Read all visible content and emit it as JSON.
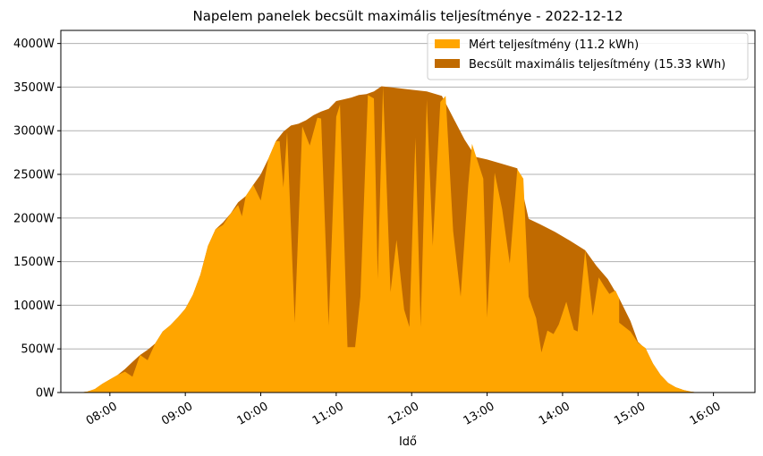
{
  "chart_data": {
    "type": "area",
    "title": "Napelem panelek becsült maximális teljesítménye  -  2022-12-12",
    "xlabel": "Idő",
    "ylabel": "",
    "x_unit": "hours",
    "xlim": [
      7.35,
      16.55
    ],
    "ylim": [
      0,
      4150
    ],
    "y_ticks": [
      0,
      500,
      1000,
      1500,
      2000,
      2500,
      3000,
      3500,
      4000
    ],
    "y_tick_suffix": "W",
    "x_ticks": [
      {
        "value": 8,
        "label": "08:00"
      },
      {
        "value": 9,
        "label": "09:00"
      },
      {
        "value": 10,
        "label": "10:00"
      },
      {
        "value": 11,
        "label": "11:00"
      },
      {
        "value": 12,
        "label": "12:00"
      },
      {
        "value": 13,
        "label": "13:00"
      },
      {
        "value": 14,
        "label": "14:00"
      },
      {
        "value": 15,
        "label": "15:00"
      },
      {
        "value": 16,
        "label": "16:00"
      }
    ],
    "grid": "horizontal",
    "legend_position": "top-right",
    "series": [
      {
        "name": "Becsült maximális teljesítmény (15.33 kWh)",
        "color": "#c06a00",
        "points": [
          [
            7.6,
            0
          ],
          [
            7.7,
            10
          ],
          [
            7.8,
            40
          ],
          [
            7.9,
            100
          ],
          [
            8.0,
            150
          ],
          [
            8.1,
            200
          ],
          [
            8.2,
            270
          ],
          [
            8.3,
            350
          ],
          [
            8.4,
            430
          ],
          [
            8.5,
            490
          ],
          [
            8.6,
            560
          ],
          [
            8.7,
            700
          ],
          [
            8.8,
            770
          ],
          [
            8.9,
            860
          ],
          [
            9.0,
            960
          ],
          [
            9.1,
            1120
          ],
          [
            9.2,
            1350
          ],
          [
            9.3,
            1680
          ],
          [
            9.4,
            1870
          ],
          [
            9.5,
            1950
          ],
          [
            9.6,
            2050
          ],
          [
            9.7,
            2180
          ],
          [
            9.8,
            2250
          ],
          [
            9.9,
            2380
          ],
          [
            10.0,
            2500
          ],
          [
            10.1,
            2680
          ],
          [
            10.2,
            2880
          ],
          [
            10.3,
            2990
          ],
          [
            10.4,
            3060
          ],
          [
            10.5,
            3080
          ],
          [
            10.6,
            3120
          ],
          [
            10.7,
            3180
          ],
          [
            10.8,
            3220
          ],
          [
            10.9,
            3250
          ],
          [
            11.0,
            3340
          ],
          [
            11.1,
            3360
          ],
          [
            11.2,
            3380
          ],
          [
            11.3,
            3410
          ],
          [
            11.4,
            3420
          ],
          [
            11.5,
            3450
          ],
          [
            11.6,
            3510
          ],
          [
            11.8,
            3490
          ],
          [
            12.0,
            3470
          ],
          [
            12.2,
            3450
          ],
          [
            12.4,
            3400
          ],
          [
            12.55,
            3150
          ],
          [
            12.7,
            2900
          ],
          [
            12.85,
            2700
          ],
          [
            13.0,
            2670
          ],
          [
            13.2,
            2620
          ],
          [
            13.4,
            2570
          ],
          [
            13.55,
            1990
          ],
          [
            13.7,
            1930
          ],
          [
            13.9,
            1840
          ],
          [
            14.1,
            1740
          ],
          [
            14.3,
            1630
          ],
          [
            14.45,
            1450
          ],
          [
            14.6,
            1300
          ],
          [
            14.75,
            1080
          ],
          [
            14.9,
            820
          ],
          [
            15.0,
            580
          ],
          [
            15.1,
            500
          ],
          [
            15.2,
            330
          ],
          [
            15.3,
            200
          ],
          [
            15.4,
            110
          ],
          [
            15.5,
            60
          ],
          [
            15.6,
            30
          ],
          [
            15.7,
            10
          ],
          [
            15.8,
            0
          ]
        ]
      },
      {
        "name": "Mért teljesítmény (11.2 kWh)",
        "color": "#ffa500",
        "points": [
          [
            7.6,
            0
          ],
          [
            7.7,
            10
          ],
          [
            7.8,
            40
          ],
          [
            7.9,
            100
          ],
          [
            8.0,
            150
          ],
          [
            8.1,
            200
          ],
          [
            8.2,
            240
          ],
          [
            8.3,
            180
          ],
          [
            8.4,
            430
          ],
          [
            8.5,
            370
          ],
          [
            8.6,
            560
          ],
          [
            8.7,
            700
          ],
          [
            8.8,
            770
          ],
          [
            8.9,
            860
          ],
          [
            9.0,
            960
          ],
          [
            9.1,
            1120
          ],
          [
            9.2,
            1350
          ],
          [
            9.3,
            1680
          ],
          [
            9.4,
            1870
          ],
          [
            9.5,
            1920
          ],
          [
            9.6,
            2050
          ],
          [
            9.7,
            2150
          ],
          [
            9.75,
            2020
          ],
          [
            9.8,
            2250
          ],
          [
            9.9,
            2380
          ],
          [
            10.0,
            2200
          ],
          [
            10.1,
            2680
          ],
          [
            10.2,
            2880
          ],
          [
            10.25,
            2880
          ],
          [
            10.3,
            2350
          ],
          [
            10.35,
            2990
          ],
          [
            10.45,
            800
          ],
          [
            10.55,
            3050
          ],
          [
            10.65,
            2830
          ],
          [
            10.75,
            3150
          ],
          [
            10.8,
            3140
          ],
          [
            10.9,
            770
          ],
          [
            11.0,
            3160
          ],
          [
            11.05,
            3300
          ],
          [
            11.15,
            520
          ],
          [
            11.25,
            520
          ],
          [
            11.32,
            1100
          ],
          [
            11.42,
            3410
          ],
          [
            11.5,
            3370
          ],
          [
            11.55,
            1300
          ],
          [
            11.62,
            3510
          ],
          [
            11.72,
            1150
          ],
          [
            11.8,
            1750
          ],
          [
            11.9,
            950
          ],
          [
            11.97,
            750
          ],
          [
            12.05,
            2920
          ],
          [
            12.12,
            750
          ],
          [
            12.2,
            3360
          ],
          [
            12.28,
            1680
          ],
          [
            12.38,
            3330
          ],
          [
            12.45,
            3400
          ],
          [
            12.55,
            1850
          ],
          [
            12.65,
            1100
          ],
          [
            12.75,
            2380
          ],
          [
            12.8,
            2850
          ],
          [
            12.95,
            2450
          ],
          [
            13.0,
            860
          ],
          [
            13.1,
            2520
          ],
          [
            13.2,
            2100
          ],
          [
            13.3,
            1480
          ],
          [
            13.4,
            2560
          ],
          [
            13.48,
            2450
          ],
          [
            13.55,
            1100
          ],
          [
            13.65,
            850
          ],
          [
            13.72,
            460
          ],
          [
            13.8,
            710
          ],
          [
            13.88,
            670
          ],
          [
            13.95,
            780
          ],
          [
            14.05,
            1040
          ],
          [
            14.15,
            720
          ],
          [
            14.2,
            700
          ],
          [
            14.3,
            1630
          ],
          [
            14.4,
            880
          ],
          [
            14.48,
            1320
          ],
          [
            14.55,
            1220
          ],
          [
            14.62,
            1130
          ],
          [
            14.7,
            1170
          ],
          [
            14.75,
            1080
          ],
          [
            14.75,
            800
          ],
          [
            14.9,
            700
          ],
          [
            15.0,
            570
          ],
          [
            15.1,
            510
          ],
          [
            15.2,
            330
          ],
          [
            15.3,
            200
          ],
          [
            15.4,
            110
          ],
          [
            15.5,
            60
          ],
          [
            15.6,
            30
          ],
          [
            15.7,
            10
          ],
          [
            15.8,
            0
          ]
        ]
      }
    ]
  }
}
